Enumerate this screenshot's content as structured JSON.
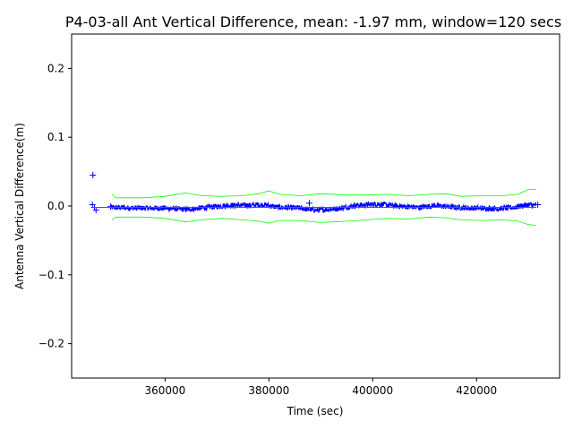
{
  "chart_data": {
    "type": "scatter",
    "title": "P4-03-all Ant Vertical Difference, mean: -1.97 mm, window=120 secs",
    "xlabel": "Time (sec)",
    "ylabel": "Antenna Vertical Difference(m)",
    "xlim": [
      342000,
      436000
    ],
    "ylim": [
      -0.25,
      0.25
    ],
    "xticks": [
      360000,
      380000,
      400000,
      420000
    ],
    "xtick_labels": [
      "360000",
      "380000",
      "400000",
      "420000"
    ],
    "yticks": [
      -0.2,
      -0.1,
      0.0,
      0.1,
      0.2
    ],
    "ytick_labels": [
      "−0.2",
      "−0.1",
      "0.0",
      "0.1",
      "0.2"
    ],
    "grid": false,
    "series": [
      {
        "role": "data",
        "marker": "+",
        "color": "#0000ff",
        "outliers": [
          {
            "x": 346100,
            "y": 0.045
          },
          {
            "x": 346000,
            "y": 0.002
          },
          {
            "x": 346700,
            "y": -0.006
          },
          {
            "x": 346400,
            "y": -0.002
          },
          {
            "x": 387800,
            "y": 0.004
          },
          {
            "x": 431800,
            "y": 0.002
          },
          {
            "x": 349500,
            "y": -0.001
          }
        ],
        "x_start": 349500,
        "x_end": 431500,
        "baseline": [
          {
            "x": 349500,
            "y": -0.002
          },
          {
            "x": 355000,
            "y": -0.003
          },
          {
            "x": 360000,
            "y": -0.003
          },
          {
            "x": 364000,
            "y": -0.005
          },
          {
            "x": 368000,
            "y": -0.002
          },
          {
            "x": 372000,
            "y": 0.001
          },
          {
            "x": 376000,
            "y": 0.001
          },
          {
            "x": 379000,
            "y": 0.002
          },
          {
            "x": 382000,
            "y": -0.002
          },
          {
            "x": 386000,
            "y": -0.003
          },
          {
            "x": 389000,
            "y": -0.006
          },
          {
            "x": 393000,
            "y": -0.004
          },
          {
            "x": 397000,
            "y": 0.001
          },
          {
            "x": 401000,
            "y": 0.003
          },
          {
            "x": 405000,
            "y": 0.0
          },
          {
            "x": 409000,
            "y": -0.002
          },
          {
            "x": 412000,
            "y": 0.001
          },
          {
            "x": 416000,
            "y": -0.002
          },
          {
            "x": 420000,
            "y": -0.003
          },
          {
            "x": 424000,
            "y": -0.004
          },
          {
            "x": 427000,
            "y": -0.002
          },
          {
            "x": 430000,
            "y": 0.002
          },
          {
            "x": 431500,
            "y": 0.001
          }
        ],
        "scatter_amplitude": 0.004
      },
      {
        "role": "mean",
        "color": "#d62728",
        "points": [
          {
            "x": 346000,
            "y": -0.002
          },
          {
            "x": 431500,
            "y": -0.002
          }
        ]
      },
      {
        "role": "upper-band",
        "color": "#00ff00",
        "points": [
          {
            "x": 349800,
            "y": 0.017
          },
          {
            "x": 350500,
            "y": 0.012
          },
          {
            "x": 356000,
            "y": 0.012
          },
          {
            "x": 360000,
            "y": 0.014
          },
          {
            "x": 364000,
            "y": 0.019
          },
          {
            "x": 367000,
            "y": 0.015
          },
          {
            "x": 371000,
            "y": 0.014
          },
          {
            "x": 375000,
            "y": 0.015
          },
          {
            "x": 378000,
            "y": 0.018
          },
          {
            "x": 380000,
            "y": 0.022
          },
          {
            "x": 382000,
            "y": 0.017
          },
          {
            "x": 386000,
            "y": 0.015
          },
          {
            "x": 390000,
            "y": 0.018
          },
          {
            "x": 395000,
            "y": 0.016
          },
          {
            "x": 399000,
            "y": 0.016
          },
          {
            "x": 403000,
            "y": 0.017
          },
          {
            "x": 407000,
            "y": 0.015
          },
          {
            "x": 411000,
            "y": 0.017
          },
          {
            "x": 414000,
            "y": 0.018
          },
          {
            "x": 417000,
            "y": 0.014
          },
          {
            "x": 421000,
            "y": 0.015
          },
          {
            "x": 425000,
            "y": 0.015
          },
          {
            "x": 428000,
            "y": 0.017
          },
          {
            "x": 430000,
            "y": 0.024
          },
          {
            "x": 431500,
            "y": 0.024
          }
        ]
      },
      {
        "role": "lower-band",
        "color": "#00ff00",
        "points": [
          {
            "x": 349800,
            "y": -0.02
          },
          {
            "x": 350500,
            "y": -0.016
          },
          {
            "x": 356000,
            "y": -0.016
          },
          {
            "x": 360000,
            "y": -0.018
          },
          {
            "x": 364000,
            "y": -0.023
          },
          {
            "x": 367000,
            "y": -0.02
          },
          {
            "x": 371000,
            "y": -0.018
          },
          {
            "x": 375000,
            "y": -0.02
          },
          {
            "x": 378000,
            "y": -0.022
          },
          {
            "x": 380000,
            "y": -0.025
          },
          {
            "x": 382000,
            "y": -0.021
          },
          {
            "x": 386000,
            "y": -0.021
          },
          {
            "x": 390000,
            "y": -0.024
          },
          {
            "x": 395000,
            "y": -0.022
          },
          {
            "x": 399000,
            "y": -0.02
          },
          {
            "x": 403000,
            "y": -0.018
          },
          {
            "x": 407000,
            "y": -0.019
          },
          {
            "x": 411000,
            "y": -0.016
          },
          {
            "x": 414000,
            "y": -0.017
          },
          {
            "x": 417000,
            "y": -0.02
          },
          {
            "x": 421000,
            "y": -0.021
          },
          {
            "x": 425000,
            "y": -0.02
          },
          {
            "x": 428000,
            "y": -0.022
          },
          {
            "x": 430000,
            "y": -0.027
          },
          {
            "x": 431500,
            "y": -0.028
          }
        ]
      }
    ]
  }
}
